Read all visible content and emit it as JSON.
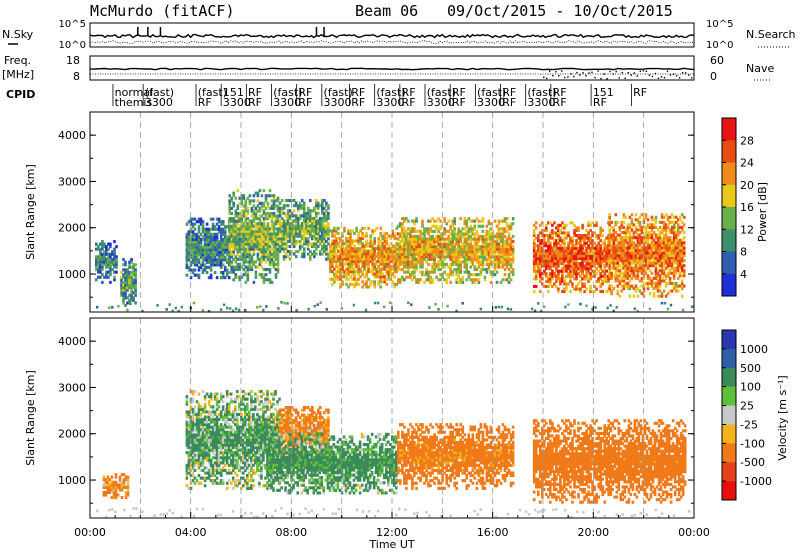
{
  "header": {
    "station": "McMurdo (fitACF)",
    "beam": "Beam 06",
    "dates": "09/Oct/2015 - 10/Oct/2015"
  },
  "noise_panel": {
    "left_label": "N.Sky",
    "left_ticks": [
      "10^5",
      "10^0"
    ],
    "right_label": "N.Search",
    "right_ticks": [
      "10^5",
      "10^0"
    ]
  },
  "freq_panel": {
    "left_label_line1": "Freq.",
    "left_label_line2": "[MHz]",
    "left_ticks": [
      "18",
      "8"
    ],
    "right_label": "Nave",
    "right_ticks": [
      "60",
      "0"
    ]
  },
  "cpid": {
    "label": "CPID",
    "entries": [
      {
        "line1": "normal",
        "line2": "themis",
        "time": 0.9
      },
      {
        "line1": "(fast)",
        "line2": "3300",
        "time": 2.1
      },
      {
        "line1": "(fast)",
        "line2": "RF",
        "time": 4.2
      },
      {
        "line1": "151",
        "line2": "3300",
        "time": 5.2
      },
      {
        "line1": "RF",
        "line2": "RF",
        "time": 6.2
      },
      {
        "line1": "(fast)",
        "line2": "3300",
        "time": 7.2
      },
      {
        "line1": "RF",
        "line2": "RF",
        "time": 8.2
      },
      {
        "line1": "(fast)",
        "line2": "3300",
        "time": 9.2
      },
      {
        "line1": "RF",
        "line2": "RF",
        "time": 10.3
      },
      {
        "line1": "(fast)",
        "line2": "3300",
        "time": 11.3
      },
      {
        "line1": "RF",
        "line2": "RF",
        "time": 12.3
      },
      {
        "line1": "(fast)",
        "line2": "3300",
        "time": 13.3
      },
      {
        "line1": "RF",
        "line2": "RF",
        "time": 14.3
      },
      {
        "line1": "(fast)",
        "line2": "3300",
        "time": 15.3
      },
      {
        "line1": "RF",
        "line2": "RF",
        "time": 16.3
      },
      {
        "line1": "(fast)",
        "line2": "3300",
        "time": 17.3
      },
      {
        "line1": "RF",
        "line2": "RF",
        "time": 18.3
      },
      {
        "line1": "151",
        "line2": "RF",
        "time": 19.9
      },
      {
        "line1": "RF",
        "line2": "",
        "time": 21.5
      }
    ]
  },
  "panels": {
    "power_ylabel": "Slant Range [km]",
    "velocity_ylabel": "Slant Range [km]",
    "y_ticks": [
      "1000",
      "2000",
      "3000",
      "4000"
    ],
    "x_ticks": [
      "00:00",
      "04:00",
      "08:00",
      "12:00",
      "16:00",
      "20:00",
      "00:00"
    ],
    "x_label": "Time UT"
  },
  "colorbars": {
    "power": {
      "label": "Power [dB]",
      "ticks": [
        "4",
        "8",
        "12",
        "16",
        "20",
        "24",
        "28"
      ],
      "colors": [
        "#1f2fd8",
        "#2f5fb0",
        "#3f8f6a",
        "#6ab04a",
        "#e8c81a",
        "#f08a18",
        "#e84c14",
        "#e81414"
      ]
    },
    "velocity": {
      "label": "Velocity [m s⁻¹]",
      "ticks": [
        "1000",
        "500",
        "100",
        "25",
        "-25",
        "-100",
        "-500",
        "-1000"
      ],
      "colors": [
        "#2838b0",
        "#2f5fa8",
        "#3a8a5c",
        "#5fbf3a",
        "#c8c8c8",
        "#f2b31c",
        "#f07a1a",
        "#e8401c",
        "#e80e0e"
      ]
    }
  },
  "chart_data": [
    {
      "type": "heatmap",
      "title": "Power [dB]",
      "xlabel": "Time UT",
      "ylabel": "Slant Range [km]",
      "xlim_hours": [
        0,
        24
      ],
      "ylim_km": [
        180,
        4500
      ],
      "colorbar_ticks": [
        4,
        8,
        12,
        16,
        20,
        24,
        28
      ],
      "regions": [
        {
          "t0": 0.2,
          "t1": 1.0,
          "r0": 800,
          "r1": 1700,
          "value": 10
        },
        {
          "t0": 1.2,
          "t1": 1.8,
          "r0": 300,
          "r1": 1300,
          "value": 12
        },
        {
          "t0": 3.8,
          "t1": 5.5,
          "r0": 900,
          "r1": 2200,
          "value": 10
        },
        {
          "t0": 5.5,
          "t1": 7.5,
          "r0": 800,
          "r1": 2800,
          "value": 14
        },
        {
          "t0": 7.5,
          "t1": 9.5,
          "r0": 1300,
          "r1": 2600,
          "value": 14
        },
        {
          "t0": 9.5,
          "t1": 12.2,
          "r0": 700,
          "r1": 2000,
          "value": 22
        },
        {
          "t0": 12.2,
          "t1": 16.8,
          "r0": 800,
          "r1": 2200,
          "value": 20
        },
        {
          "t0": 17.6,
          "t1": 20.6,
          "r0": 600,
          "r1": 2100,
          "value": 26
        },
        {
          "t0": 20.6,
          "t1": 23.6,
          "r0": 500,
          "r1": 2300,
          "value": 24
        }
      ]
    },
    {
      "type": "heatmap",
      "title": "Velocity [m s-1]",
      "xlabel": "Time UT",
      "ylabel": "Slant Range [km]",
      "xlim_hours": [
        0,
        24
      ],
      "ylim_km": [
        180,
        4500
      ],
      "colorbar_ticks": [
        1000,
        500,
        100,
        25,
        -25,
        -100,
        -500,
        -1000
      ],
      "regions": [
        {
          "t0": 0.5,
          "t1": 1.5,
          "r0": 600,
          "r1": 1100,
          "value": -120
        },
        {
          "t0": 3.8,
          "t1": 7.5,
          "r0": 800,
          "r1": 2900,
          "value": 150
        },
        {
          "t0": 7.5,
          "t1": 9.5,
          "r0": 1500,
          "r1": 2600,
          "value": -150
        },
        {
          "t0": 7.0,
          "t1": 12.2,
          "r0": 700,
          "r1": 2000,
          "value": 200
        },
        {
          "t0": 12.2,
          "t1": 16.8,
          "r0": 800,
          "r1": 2200,
          "value": -200
        },
        {
          "t0": 17.6,
          "t1": 23.6,
          "r0": 500,
          "r1": 2300,
          "value": -250
        }
      ]
    }
  ]
}
